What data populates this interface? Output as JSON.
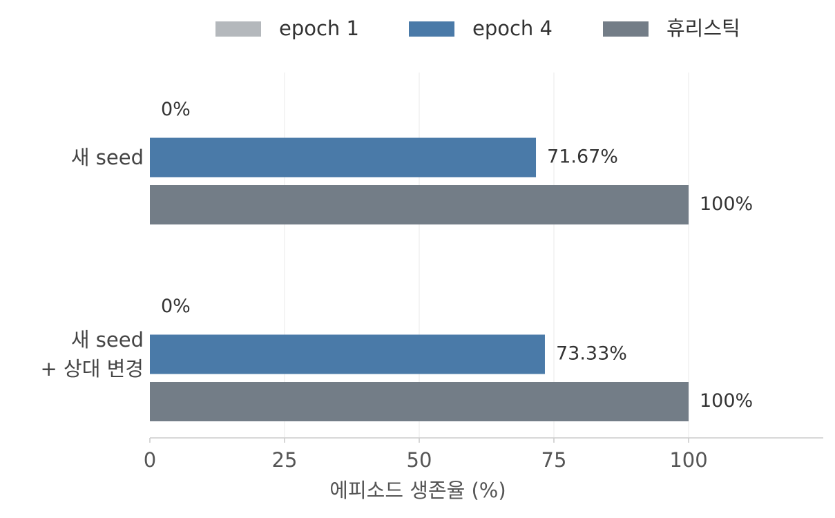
{
  "chart_data": {
    "type": "barh",
    "categories": [
      "새 seed",
      "새 seed\n+ 상대 변경"
    ],
    "series": [
      {
        "name": "epoch 1",
        "color": "#b4b8bc",
        "values": [
          0,
          0
        ],
        "value_labels": [
          "0%",
          "0%"
        ]
      },
      {
        "name": "epoch 4",
        "color": "#4a7aa8",
        "values": [
          71.67,
          73.33
        ],
        "value_labels": [
          "71.67%",
          "73.33%"
        ]
      },
      {
        "name": "휴리스틱",
        "color": "#737d87",
        "values": [
          100,
          100
        ],
        "value_labels": [
          "100%",
          "100%"
        ]
      }
    ],
    "xlabel": "에피소드 생존율 (%)",
    "xlim": [
      0,
      125
    ],
    "xticks": [
      0,
      25,
      50,
      75,
      100
    ],
    "grid": true,
    "legend": "top"
  }
}
